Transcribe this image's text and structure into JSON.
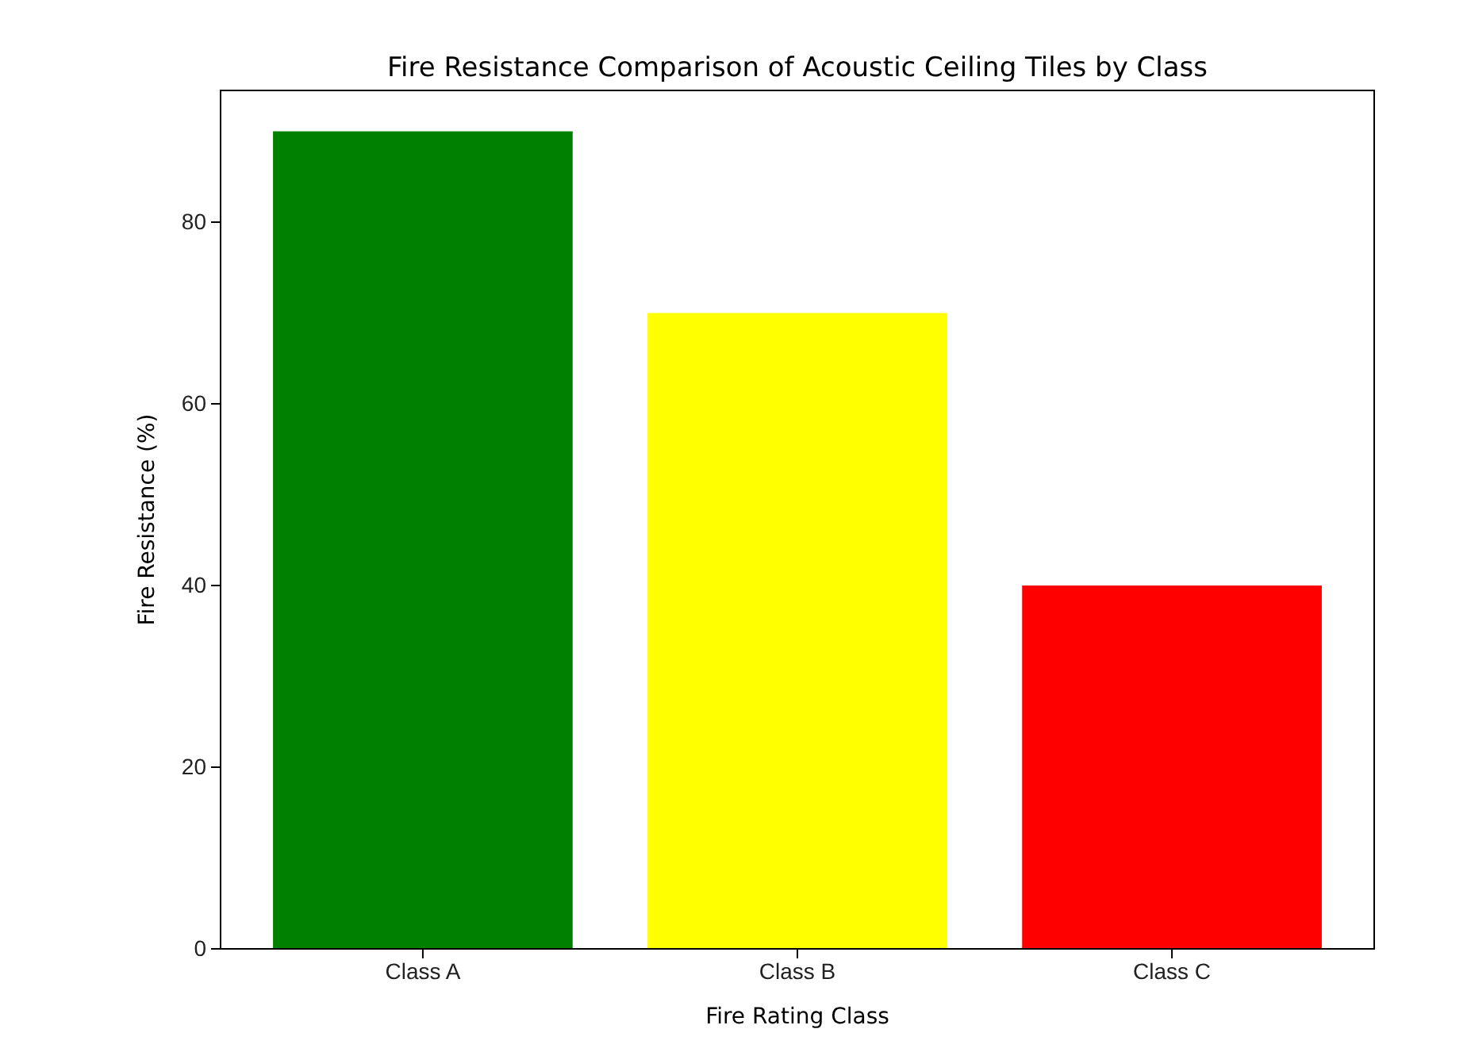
{
  "chart_data": {
    "type": "bar",
    "title": "Fire Resistance Comparison of Acoustic Ceiling Tiles by Class",
    "xlabel": "Fire Rating Class",
    "ylabel": "Fire Resistance (%)",
    "categories": [
      "Class A",
      "Class B",
      "Class C"
    ],
    "values": [
      90,
      70,
      40
    ],
    "colors": [
      "#008000",
      "#ffff00",
      "#ff0000"
    ],
    "ylim": [
      0,
      94.5
    ],
    "yticks": [
      0,
      20,
      40,
      60,
      80
    ],
    "grid": false
  }
}
